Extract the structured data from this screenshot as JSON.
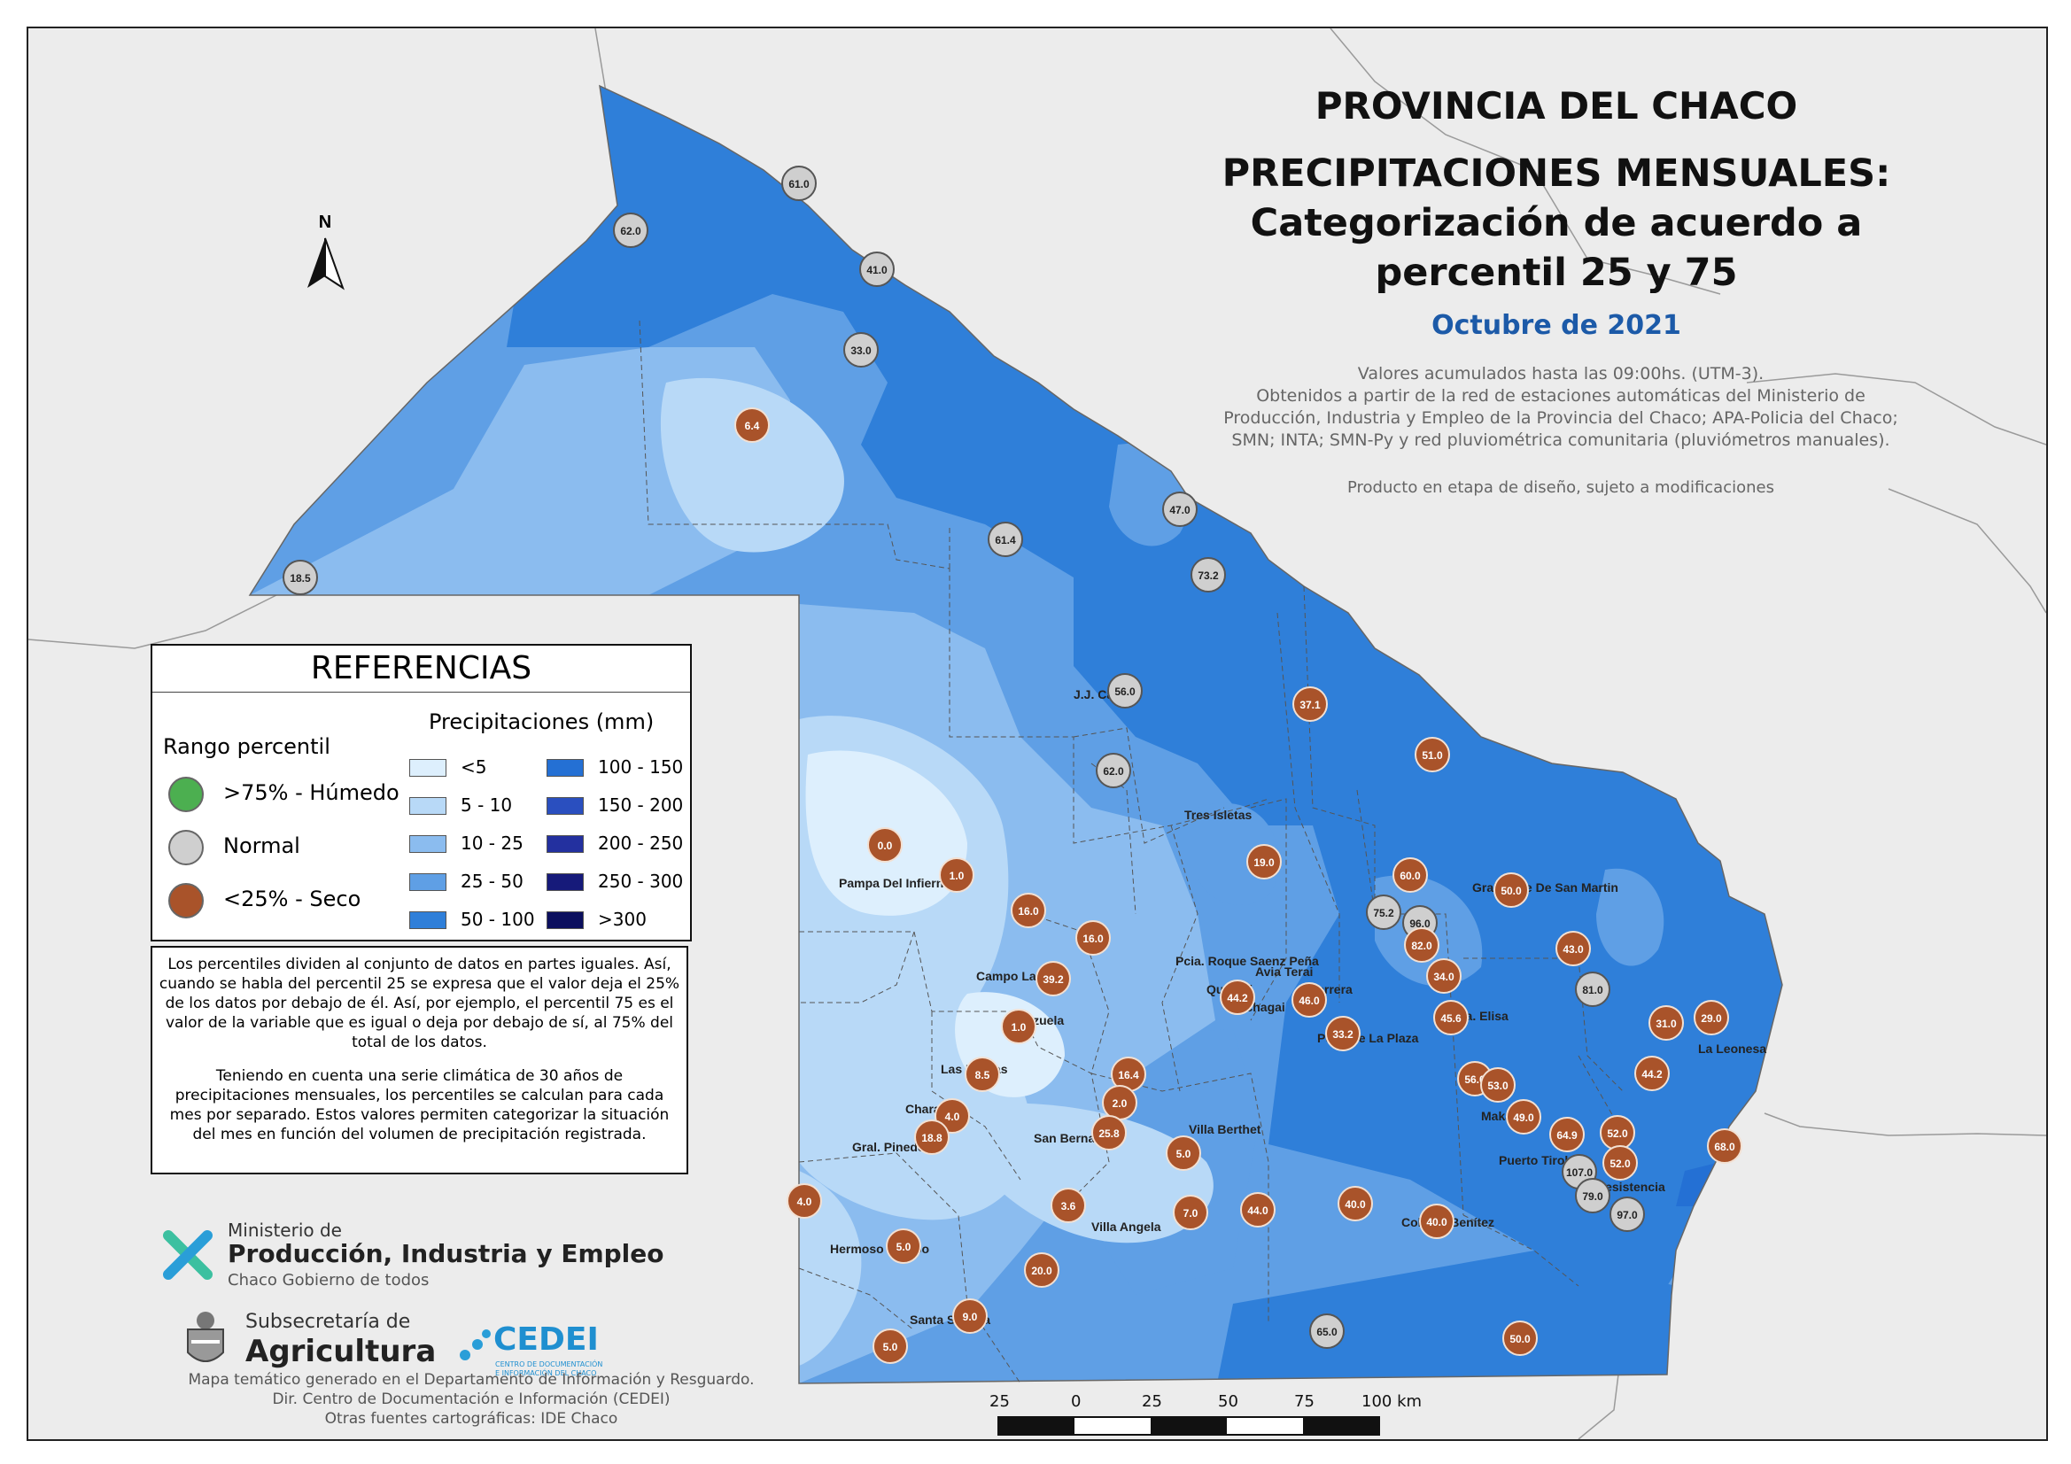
{
  "title": {
    "line1": "PROVINCIA DEL CHACO",
    "line2": "PRECIPITACIONES MENSUALES:",
    "line3": "Categorización de acuerdo a",
    "line4": "percentil 25 y 75",
    "month": "Octubre de 2021"
  },
  "description": {
    "line1": "Valores acumulados hasta las 09:00hs. (UTM-3).",
    "line2": "Obtenidos a partir de la red de estaciones automáticas del Ministerio de",
    "line3": "Producción, Industria y Empleo de la Provincia del Chaco; APA-Policia del Chaco;",
    "line4": "SMN; INTA; SMN-Py y red pluviométrica comunitaria (pluviómetros manuales).",
    "draft": "Producto en etapa de diseño, sujeto a modificaciones"
  },
  "north_label": "N",
  "legend": {
    "title": "REFERENCIAS",
    "percentile_title": "Rango percentil",
    "precip_title": "Precipitaciones (mm)",
    "percentile_items": [
      {
        "label": ">75% - Húmedo",
        "color": "#4caf50"
      },
      {
        "label": "Normal",
        "color": "#cfcfcf"
      },
      {
        "label": "<25% - Seco",
        "color": "#a9532a"
      }
    ],
    "ranges": [
      {
        "label": "<5",
        "color": "#ddeffd"
      },
      {
        "label": "5 - 10",
        "color": "#b8d9f7"
      },
      {
        "label": "10 - 25",
        "color": "#8bbcef"
      },
      {
        "label": "25 - 50",
        "color": "#5f9fe5"
      },
      {
        "label": "50 - 100",
        "color": "#2f7fd9"
      },
      {
        "label": "100 - 150",
        "color": "#2470d4"
      },
      {
        "label": "150 - 200",
        "color": "#2a4fbf"
      },
      {
        "label": "200 - 250",
        "color": "#23309f"
      },
      {
        "label": "250 - 300",
        "color": "#161a7a"
      },
      {
        "label": ">300",
        "color": "#0b0f5e"
      }
    ]
  },
  "explanation": {
    "p1": "Los percentiles dividen al conjunto de datos en partes iguales. Así, cuando se habla del percentil 25 se expresa que el valor deja el 25% de los datos por debajo de él. Así, por ejemplo, el percentil 75 es el valor de la variable que es igual o deja por debajo de sí, al 75% del total de los datos.",
    "p2": "Teniendo en cuenta una serie climática de 30 años de precipitaciones mensuales, los percentiles se calculan para cada mes por separado. Estos valores permiten categorizar la situación del mes en función del volumen de precipitación registrada."
  },
  "logos": {
    "ministry_prefix": "Ministerio de",
    "ministry_name": "Producción, Industria y Empleo",
    "ministry_sub": "Chaco Gobierno de todos",
    "subsec_prefix": "Subsecretaría de",
    "subsec_name": "Agricultura",
    "cedei_name": "CEDEI",
    "cedei_sub1": "CENTRO DE DOCUMENTACIÓN",
    "cedei_sub2": "E INFORMACIÓN DEL CHACO"
  },
  "footer": {
    "line1": "Mapa temático generado en el Departamento de Información y Resguardo.",
    "line2": "Dir. Centro de Documentación e Información (CEDEI)",
    "line3": "Otras fuentes cartográficas: IDE Chaco"
  },
  "scale_bar": {
    "labels": [
      "25",
      "0",
      "25",
      "50",
      "75",
      "100 km"
    ]
  },
  "places": [
    "J.J. Castelli",
    "Tres Isletas",
    "Pampa Del Infierno",
    "Gral. Jose De San Martin",
    "Campo Largo",
    "Pcia. Roque Saenz Peña",
    "Quitilipi",
    "Machagai",
    "Avia Terai",
    "Herrera",
    "Cnia. Elisa",
    "Pcia. De La Plaza",
    "Corzuela",
    "Las Breñas",
    "La Leonesa",
    "Charata",
    "Gral. Pinedo",
    "San Bernardo",
    "Villa Berthet",
    "Makallé",
    "Puerto Tirol",
    "Resistencia",
    "Villa Angela",
    "Colonia Benítez",
    "Hermoso Campo",
    "Santa Sylvina"
  ],
  "stations": [
    {
      "v": "61.0",
      "c": "normal"
    },
    {
      "v": "62.0",
      "c": "normal"
    },
    {
      "v": "41.0",
      "c": "normal"
    },
    {
      "v": "33.0",
      "c": "normal"
    },
    {
      "v": "6.4",
      "c": "seco"
    },
    {
      "v": "47.0",
      "c": "normal"
    },
    {
      "v": "61.4",
      "c": "normal"
    },
    {
      "v": "73.2",
      "c": "normal"
    },
    {
      "v": "18.5",
      "c": "normal"
    },
    {
      "v": "56.0",
      "c": "normal"
    },
    {
      "v": "37.1",
      "c": "seco"
    },
    {
      "v": "62.0",
      "c": "normal"
    },
    {
      "v": "51.0",
      "c": "seco"
    },
    {
      "v": "0.0",
      "c": "seco"
    },
    {
      "v": "19.0",
      "c": "seco"
    },
    {
      "v": "1.0",
      "c": "seco"
    },
    {
      "v": "60.0",
      "c": "seco"
    },
    {
      "v": "50.0",
      "c": "seco"
    },
    {
      "v": "16.0",
      "c": "seco"
    },
    {
      "v": "75.2",
      "c": "normal"
    },
    {
      "v": "96.0",
      "c": "normal"
    },
    {
      "v": "16.0",
      "c": "seco"
    },
    {
      "v": "82.0",
      "c": "seco"
    },
    {
      "v": "43.0",
      "c": "seco"
    },
    {
      "v": "39.2",
      "c": "seco"
    },
    {
      "v": "34.0",
      "c": "seco"
    },
    {
      "v": "81.0",
      "c": "normal"
    },
    {
      "v": "44.2",
      "c": "seco"
    },
    {
      "v": "46.0",
      "c": "seco"
    },
    {
      "v": "1.0",
      "c": "seco"
    },
    {
      "v": "33.2",
      "c": "seco"
    },
    {
      "v": "45.6",
      "c": "seco"
    },
    {
      "v": "31.0",
      "c": "seco"
    },
    {
      "v": "29.0",
      "c": "seco"
    },
    {
      "v": "44.2",
      "c": "seco"
    },
    {
      "v": "8.5",
      "c": "seco"
    },
    {
      "v": "16.4",
      "c": "seco"
    },
    {
      "v": "56.0",
      "c": "seco"
    },
    {
      "v": "53.0",
      "c": "seco"
    },
    {
      "v": "2.0",
      "c": "seco"
    },
    {
      "v": "4.0",
      "c": "seco"
    },
    {
      "v": "49.0",
      "c": "seco"
    },
    {
      "v": "25.8",
      "c": "seco"
    },
    {
      "v": "18.8",
      "c": "seco"
    },
    {
      "v": "64.9",
      "c": "seco"
    },
    {
      "v": "52.0",
      "c": "seco"
    },
    {
      "v": "5.0",
      "c": "seco"
    },
    {
      "v": "68.0",
      "c": "seco"
    },
    {
      "v": "52.0",
      "c": "seco"
    },
    {
      "v": "107.0",
      "c": "normal"
    },
    {
      "v": "4.0",
      "c": "seco"
    },
    {
      "v": "79.0",
      "c": "normal"
    },
    {
      "v": "3.6",
      "c": "seco"
    },
    {
      "v": "7.0",
      "c": "seco"
    },
    {
      "v": "44.0",
      "c": "seco"
    },
    {
      "v": "40.0",
      "c": "seco"
    },
    {
      "v": "40.0",
      "c": "seco"
    },
    {
      "v": "97.0",
      "c": "normal"
    },
    {
      "v": "5.0",
      "c": "seco"
    },
    {
      "v": "20.0",
      "c": "seco"
    },
    {
      "v": "9.0",
      "c": "seco"
    },
    {
      "v": "65.0",
      "c": "normal"
    },
    {
      "v": "50.0",
      "c": "seco"
    },
    {
      "v": "5.0",
      "c": "seco"
    }
  ]
}
